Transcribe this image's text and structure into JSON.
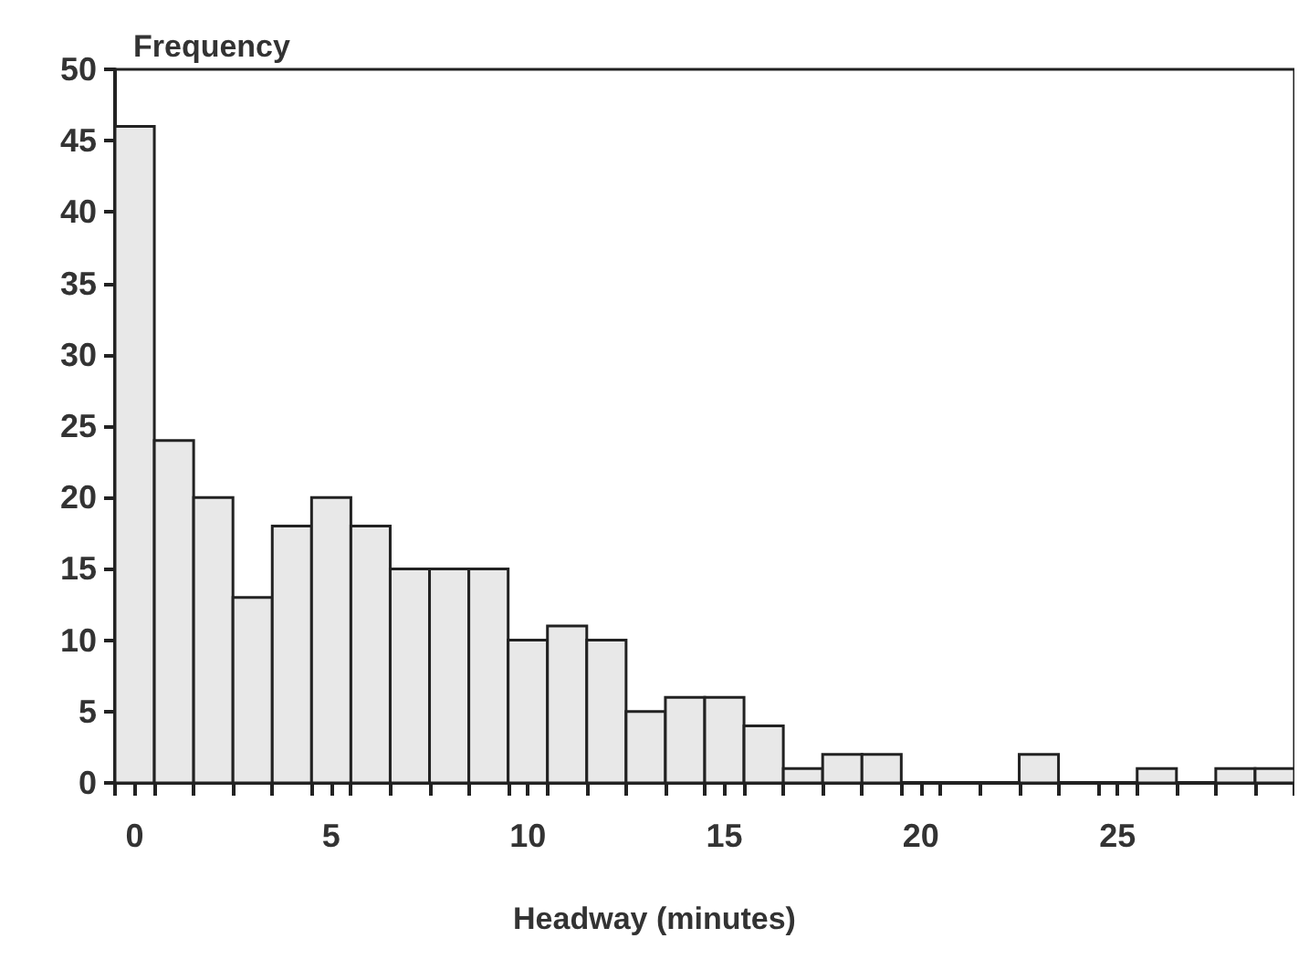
{
  "chart_data": {
    "type": "histogram",
    "xlabel": "Headway (minutes)",
    "ylabel": "Frequency",
    "color": "#e8e8e8",
    "bins": [
      -0.5,
      0.5,
      1.5,
      2.5,
      3.5,
      4.5,
      5.5,
      6.5,
      7.5,
      8.5,
      9.5,
      10.5,
      11.5,
      12.5,
      13.5,
      14.5,
      15.5,
      16.5,
      17.5,
      18.5,
      19.5,
      20.5,
      21.5,
      22.5,
      23.5,
      24.5,
      25.5,
      26.5,
      27.5,
      28.5,
      29.5
    ],
    "values": [
      46,
      24,
      20,
      13,
      18,
      20,
      18,
      15,
      15,
      15,
      10,
      11,
      10,
      5,
      6,
      6,
      4,
      1,
      2,
      2,
      0,
      0,
      0,
      2,
      0,
      0,
      1,
      0,
      1,
      1
    ],
    "xlim": [
      -0.5,
      29.5
    ],
    "xticks": [
      {
        "value": -0.5,
        "label": null
      },
      0,
      {
        "value": 0.5,
        "label": null
      },
      {
        "value": 1.5,
        "label": null
      },
      {
        "value": 2.5,
        "label": null
      },
      {
        "value": 3.5,
        "label": null
      },
      {
        "value": 4.5,
        "label": null
      },
      5,
      {
        "value": 5.5,
        "label": null
      },
      {
        "value": 6.5,
        "label": null
      },
      {
        "value": 7.5,
        "label": null
      },
      {
        "value": 8.5,
        "label": null
      },
      {
        "value": 9.5,
        "label": null
      },
      10,
      {
        "value": 10.5,
        "label": null
      },
      {
        "value": 11.5,
        "label": null
      },
      {
        "value": 12.5,
        "label": null
      },
      {
        "value": 13.5,
        "label": null
      },
      {
        "value": 14.5,
        "label": null
      },
      15,
      {
        "value": 15.5,
        "label": null
      },
      {
        "value": 16.5,
        "label": null
      },
      {
        "value": 17.5,
        "label": null
      },
      {
        "value": 18.5,
        "label": null
      },
      {
        "value": 19.5,
        "label": null
      },
      20,
      {
        "value": 20.5,
        "label": null
      },
      {
        "value": 21.5,
        "label": null
      },
      {
        "value": 22.5,
        "label": null
      },
      {
        "value": 23.5,
        "label": null
      },
      {
        "value": 24.5,
        "label": null
      },
      25,
      {
        "value": 25.5,
        "label": null
      },
      {
        "value": 26.5,
        "label": null
      },
      {
        "value": 27.5,
        "label": null
      },
      {
        "value": 28.5,
        "label": null
      },
      {
        "value": 29.5,
        "label": null
      }
    ],
    "ylim": [
      0,
      50
    ],
    "yticks": [
      0,
      5,
      10,
      15,
      20,
      25,
      30,
      35,
      40,
      45,
      50
    ],
    "grid": false
  }
}
